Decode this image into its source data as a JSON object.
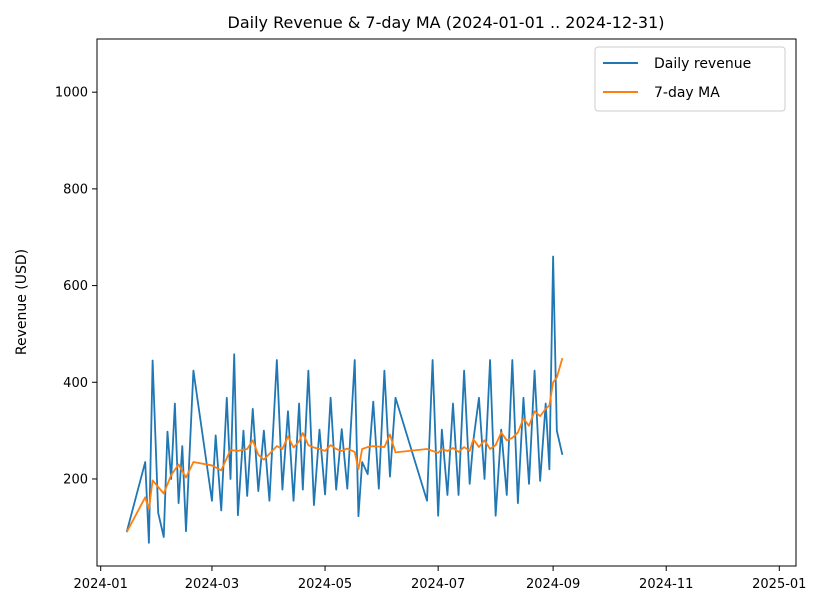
{
  "chart_data": {
    "type": "line",
    "title": "Daily Revenue & 7-day MA (2024-01-01 .. 2024-12-31)",
    "xlabel": "",
    "ylabel": "Revenue (USD)",
    "xlim": [
      "2023-12-30",
      "2025-01-10"
    ],
    "ylim": [
      20,
      1110
    ],
    "x_ticks": [
      {
        "date": "2024-01-01",
        "label": "2024-01"
      },
      {
        "date": "2024-03-01",
        "label": "2024-03"
      },
      {
        "date": "2024-05-01",
        "label": "2024-05"
      },
      {
        "date": "2024-07-01",
        "label": "2024-07"
      },
      {
        "date": "2024-09-01",
        "label": "2024-09"
      },
      {
        "date": "2024-11-01",
        "label": "2024-11"
      },
      {
        "date": "2025-01-01",
        "label": "2025-01"
      }
    ],
    "y_ticks": [
      200,
      400,
      600,
      800,
      1000
    ],
    "grid": false,
    "legend_position": "top-right",
    "series": [
      {
        "name": "Daily revenue",
        "color": "#1f77b4",
        "points": [
          [
            "2024-01-15",
            90
          ],
          [
            "2024-01-25",
            235
          ],
          [
            "2024-01-27",
            68
          ],
          [
            "2024-01-29",
            445
          ],
          [
            "2024-02-01",
            130
          ],
          [
            "2024-02-04",
            80
          ],
          [
            "2024-02-06",
            298
          ],
          [
            "2024-02-08",
            200
          ],
          [
            "2024-02-10",
            356
          ],
          [
            "2024-02-12",
            150
          ],
          [
            "2024-02-14",
            268
          ],
          [
            "2024-02-16",
            92
          ],
          [
            "2024-02-20",
            424
          ],
          [
            "2024-03-01",
            155
          ],
          [
            "2024-03-03",
            290
          ],
          [
            "2024-03-06",
            135
          ],
          [
            "2024-03-09",
            368
          ],
          [
            "2024-03-11",
            200
          ],
          [
            "2024-03-13",
            458
          ],
          [
            "2024-03-15",
            125
          ],
          [
            "2024-03-18",
            300
          ],
          [
            "2024-03-20",
            165
          ],
          [
            "2024-03-23",
            345
          ],
          [
            "2024-03-26",
            175
          ],
          [
            "2024-03-29",
            300
          ],
          [
            "2024-04-01",
            155
          ],
          [
            "2024-04-05",
            446
          ],
          [
            "2024-04-08",
            178
          ],
          [
            "2024-04-11",
            340
          ],
          [
            "2024-04-14",
            155
          ],
          [
            "2024-04-17",
            356
          ],
          [
            "2024-04-19",
            178
          ],
          [
            "2024-04-22",
            424
          ],
          [
            "2024-04-25",
            146
          ],
          [
            "2024-04-28",
            302
          ],
          [
            "2024-05-01",
            168
          ],
          [
            "2024-05-04",
            368
          ],
          [
            "2024-05-07",
            178
          ],
          [
            "2024-05-10",
            303
          ],
          [
            "2024-05-13",
            180
          ],
          [
            "2024-05-17",
            446
          ],
          [
            "2024-05-19",
            123
          ],
          [
            "2024-05-21",
            235
          ],
          [
            "2024-05-24",
            210
          ],
          [
            "2024-05-27",
            360
          ],
          [
            "2024-05-30",
            180
          ],
          [
            "2024-06-02",
            424
          ],
          [
            "2024-06-05",
            205
          ],
          [
            "2024-06-08",
            368
          ],
          [
            "2024-06-25",
            155
          ],
          [
            "2024-06-28",
            446
          ],
          [
            "2024-07-01",
            124
          ],
          [
            "2024-07-03",
            302
          ],
          [
            "2024-07-06",
            167
          ],
          [
            "2024-07-09",
            356
          ],
          [
            "2024-07-12",
            167
          ],
          [
            "2024-07-15",
            424
          ],
          [
            "2024-07-18",
            190
          ],
          [
            "2024-07-20",
            280
          ],
          [
            "2024-07-23",
            368
          ],
          [
            "2024-07-26",
            200
          ],
          [
            "2024-07-29",
            446
          ],
          [
            "2024-08-01",
            124
          ],
          [
            "2024-08-04",
            302
          ],
          [
            "2024-08-07",
            167
          ],
          [
            "2024-08-10",
            446
          ],
          [
            "2024-08-13",
            150
          ],
          [
            "2024-08-16",
            368
          ],
          [
            "2024-08-19",
            190
          ],
          [
            "2024-08-22",
            424
          ],
          [
            "2024-08-25",
            196
          ],
          [
            "2024-08-28",
            356
          ],
          [
            "2024-08-30",
            220
          ],
          [
            "2024-09-01",
            660
          ],
          [
            "2024-09-03",
            300
          ],
          [
            "2024-09-06",
            250
          ]
        ]
      },
      {
        "name": "7-day MA",
        "color": "#ff7f0e",
        "points": [
          [
            "2024-01-15",
            90
          ],
          [
            "2024-01-25",
            162
          ],
          [
            "2024-01-27",
            138
          ],
          [
            "2024-01-29",
            197
          ],
          [
            "2024-02-04",
            170
          ],
          [
            "2024-02-08",
            208
          ],
          [
            "2024-02-12",
            230
          ],
          [
            "2024-02-16",
            203
          ],
          [
            "2024-02-20",
            235
          ],
          [
            "2024-03-01",
            228
          ],
          [
            "2024-03-06",
            218
          ],
          [
            "2024-03-11",
            260
          ],
          [
            "2024-03-15",
            258
          ],
          [
            "2024-03-20",
            262
          ],
          [
            "2024-03-23",
            280
          ],
          [
            "2024-03-26",
            250
          ],
          [
            "2024-03-29",
            240
          ],
          [
            "2024-04-05",
            268
          ],
          [
            "2024-04-08",
            262
          ],
          [
            "2024-04-11",
            288
          ],
          [
            "2024-04-14",
            265
          ],
          [
            "2024-04-17",
            278
          ],
          [
            "2024-04-19",
            295
          ],
          [
            "2024-04-22",
            270
          ],
          [
            "2024-04-25",
            265
          ],
          [
            "2024-04-28",
            262
          ],
          [
            "2024-05-01",
            258
          ],
          [
            "2024-05-04",
            270
          ],
          [
            "2024-05-07",
            262
          ],
          [
            "2024-05-10",
            258
          ],
          [
            "2024-05-13",
            263
          ],
          [
            "2024-05-17",
            256
          ],
          [
            "2024-05-19",
            220
          ],
          [
            "2024-05-21",
            262
          ],
          [
            "2024-05-24",
            266
          ],
          [
            "2024-05-27",
            268
          ],
          [
            "2024-06-02",
            266
          ],
          [
            "2024-06-05",
            292
          ],
          [
            "2024-06-08",
            255
          ],
          [
            "2024-06-25",
            262
          ],
          [
            "2024-06-28",
            258
          ],
          [
            "2024-07-01",
            254
          ],
          [
            "2024-07-03",
            262
          ],
          [
            "2024-07-06",
            258
          ],
          [
            "2024-07-09",
            264
          ],
          [
            "2024-07-12",
            256
          ],
          [
            "2024-07-15",
            266
          ],
          [
            "2024-07-18",
            258
          ],
          [
            "2024-07-20",
            282
          ],
          [
            "2024-07-23",
            266
          ],
          [
            "2024-07-26",
            280
          ],
          [
            "2024-07-29",
            262
          ],
          [
            "2024-08-01",
            270
          ],
          [
            "2024-08-04",
            296
          ],
          [
            "2024-08-07",
            280
          ],
          [
            "2024-08-10",
            285
          ],
          [
            "2024-08-13",
            296
          ],
          [
            "2024-08-16",
            325
          ],
          [
            "2024-08-19",
            310
          ],
          [
            "2024-08-22",
            340
          ],
          [
            "2024-08-25",
            330
          ],
          [
            "2024-08-28",
            345
          ],
          [
            "2024-08-30",
            352
          ],
          [
            "2024-09-01",
            400
          ],
          [
            "2024-09-03",
            410
          ],
          [
            "2024-09-06",
            450
          ]
        ]
      }
    ]
  }
}
